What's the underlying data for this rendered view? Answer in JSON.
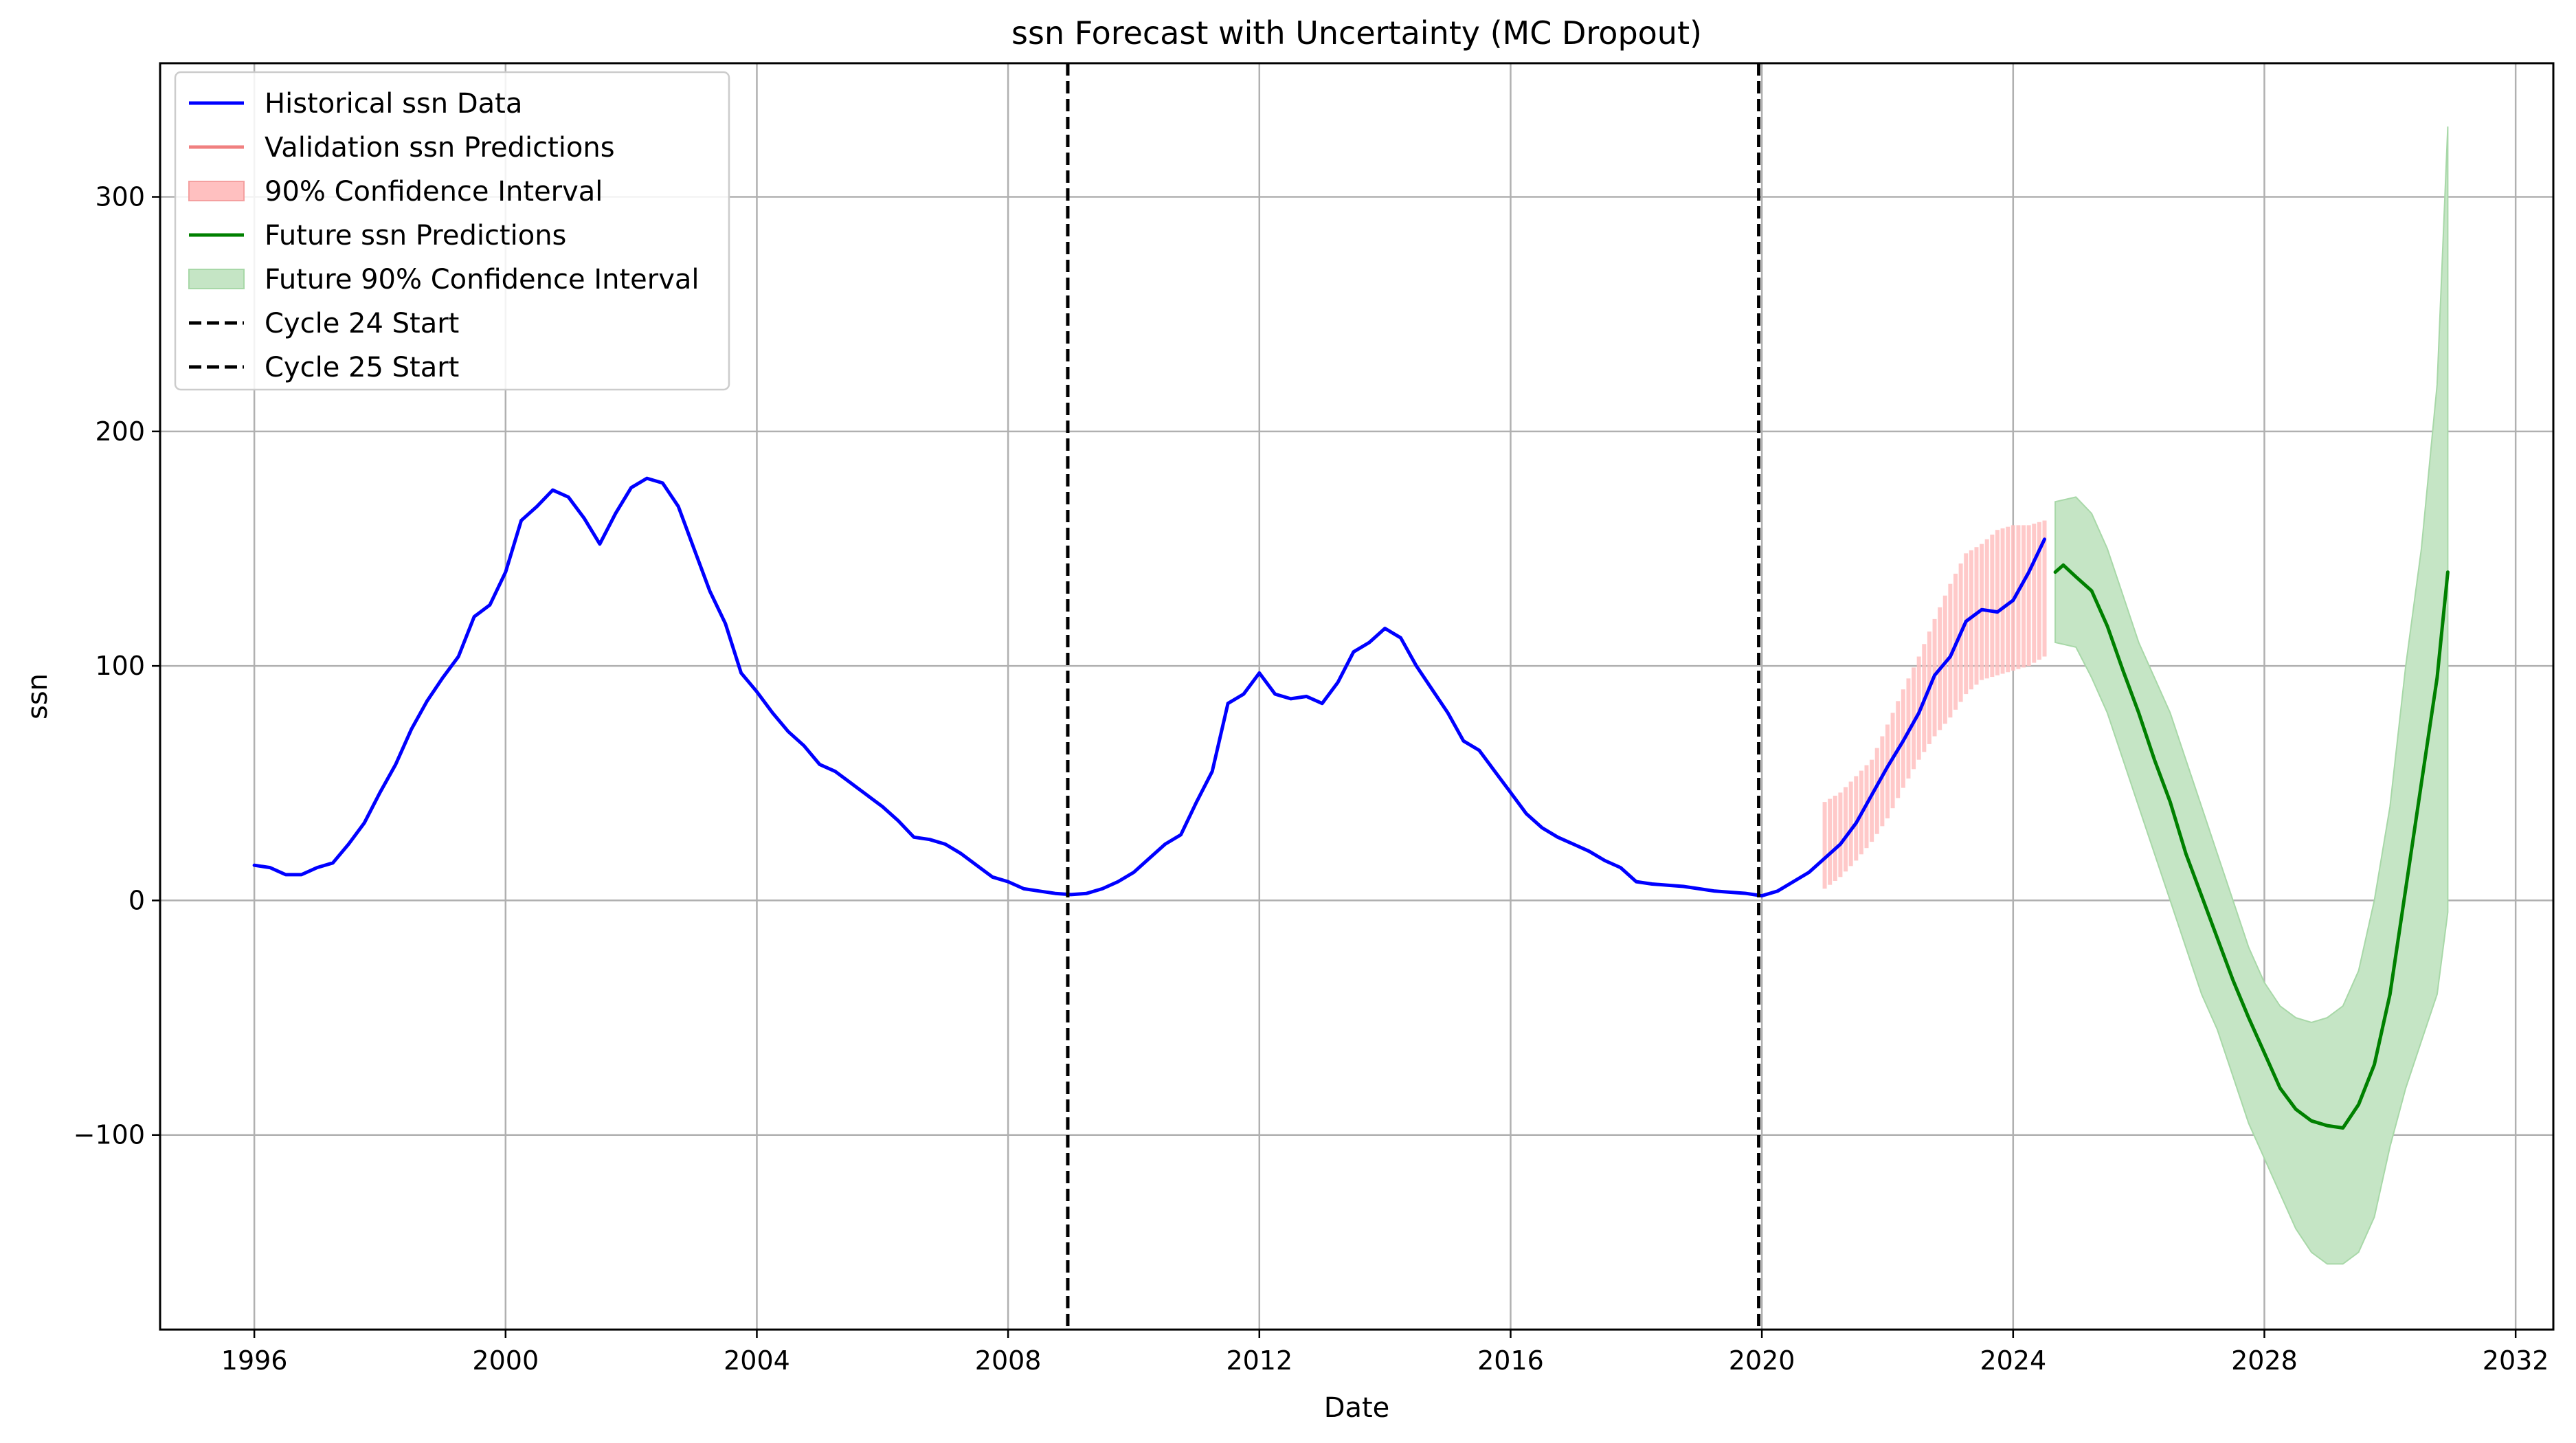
{
  "chart_data": {
    "type": "line",
    "title": "ssn Forecast with Uncertainty (MC Dropout)",
    "xlabel": "Date",
    "ylabel": "ssn",
    "xlim": [
      1994.5,
      2032.6
    ],
    "ylim": [
      -183,
      357
    ],
    "x_ticks": [
      1996,
      2000,
      2004,
      2008,
      2012,
      2016,
      2020,
      2024,
      2028,
      2032
    ],
    "y_ticks": [
      -100,
      0,
      100,
      200,
      300
    ],
    "y_tick_labels": [
      "−100",
      "0",
      "100",
      "200",
      "300"
    ],
    "grid": true,
    "legend_position": "top-left",
    "legend": [
      {
        "label": "Historical ssn Data",
        "kind": "line",
        "color": "#0000ff"
      },
      {
        "label": "Validation ssn Predictions",
        "kind": "line",
        "color": "#f08080"
      },
      {
        "label": "90% Confidence Interval",
        "kind": "patch",
        "color": "#ffc0c0"
      },
      {
        "label": "Future ssn Predictions",
        "kind": "line",
        "color": "#008000"
      },
      {
        "label": "Future 90% Confidence Interval",
        "kind": "patch",
        "color": "#c5e5c5"
      },
      {
        "label": "Cycle 24 Start",
        "kind": "dashed",
        "color": "#000000"
      },
      {
        "label": "Cycle 25 Start",
        "kind": "dashed",
        "color": "#000000"
      }
    ],
    "vlines": [
      {
        "name": "Cycle 24 Start",
        "x": 2008.95
      },
      {
        "name": "Cycle 25 Start",
        "x": 2019.95
      }
    ],
    "series": [
      {
        "name": "Historical ssn Data",
        "color": "#0000ff",
        "points": [
          [
            1996.0,
            15
          ],
          [
            1996.25,
            14
          ],
          [
            1996.5,
            11
          ],
          [
            1996.75,
            11
          ],
          [
            1997.0,
            14
          ],
          [
            1997.25,
            16
          ],
          [
            1997.5,
            24
          ],
          [
            1997.75,
            33
          ],
          [
            1998.0,
            46
          ],
          [
            1998.25,
            58
          ],
          [
            1998.5,
            73
          ],
          [
            1998.75,
            85
          ],
          [
            1999.0,
            95
          ],
          [
            1999.25,
            104
          ],
          [
            1999.5,
            121
          ],
          [
            1999.75,
            126
          ],
          [
            2000.0,
            140
          ],
          [
            2000.25,
            162
          ],
          [
            2000.5,
            168
          ],
          [
            2000.75,
            175
          ],
          [
            2001.0,
            172
          ],
          [
            2001.25,
            163
          ],
          [
            2001.5,
            152
          ],
          [
            2001.75,
            165
          ],
          [
            2002.0,
            176
          ],
          [
            2002.25,
            180
          ],
          [
            2002.5,
            178
          ],
          [
            2002.75,
            168
          ],
          [
            2003.0,
            150
          ],
          [
            2003.25,
            132
          ],
          [
            2003.5,
            118
          ],
          [
            2003.75,
            97
          ],
          [
            2004.0,
            89
          ],
          [
            2004.25,
            80
          ],
          [
            2004.5,
            72
          ],
          [
            2004.75,
            66
          ],
          [
            2005.0,
            58
          ],
          [
            2005.25,
            55
          ],
          [
            2005.5,
            50
          ],
          [
            2005.75,
            45
          ],
          [
            2006.0,
            40
          ],
          [
            2006.25,
            34
          ],
          [
            2006.5,
            27
          ],
          [
            2006.75,
            26
          ],
          [
            2007.0,
            24
          ],
          [
            2007.25,
            20
          ],
          [
            2007.5,
            15
          ],
          [
            2007.75,
            10
          ],
          [
            2008.0,
            8
          ],
          [
            2008.25,
            5
          ],
          [
            2008.5,
            4
          ],
          [
            2008.75,
            3
          ],
          [
            2009.0,
            2.5
          ],
          [
            2009.25,
            3
          ],
          [
            2009.5,
            5
          ],
          [
            2009.75,
            8
          ],
          [
            2010.0,
            12
          ],
          [
            2010.25,
            18
          ],
          [
            2010.5,
            24
          ],
          [
            2010.75,
            28
          ],
          [
            2011.0,
            42
          ],
          [
            2011.25,
            55
          ],
          [
            2011.5,
            84
          ],
          [
            2011.75,
            88
          ],
          [
            2012.0,
            97
          ],
          [
            2012.25,
            88
          ],
          [
            2012.5,
            86
          ],
          [
            2012.75,
            87
          ],
          [
            2013.0,
            84
          ],
          [
            2013.25,
            93
          ],
          [
            2013.5,
            106
          ],
          [
            2013.75,
            110
          ],
          [
            2014.0,
            116
          ],
          [
            2014.25,
            112
          ],
          [
            2014.5,
            100
          ],
          [
            2014.75,
            90
          ],
          [
            2015.0,
            80
          ],
          [
            2015.25,
            68
          ],
          [
            2015.5,
            64
          ],
          [
            2015.75,
            55
          ],
          [
            2016.0,
            46
          ],
          [
            2016.25,
            37
          ],
          [
            2016.5,
            31
          ],
          [
            2016.75,
            27
          ],
          [
            2017.0,
            24
          ],
          [
            2017.25,
            21
          ],
          [
            2017.5,
            17
          ],
          [
            2017.75,
            14
          ],
          [
            2018.0,
            8
          ],
          [
            2018.25,
            7
          ],
          [
            2018.5,
            6.5
          ],
          [
            2018.75,
            6
          ],
          [
            2019.0,
            5
          ],
          [
            2019.25,
            4
          ],
          [
            2019.5,
            3.5
          ],
          [
            2019.75,
            3
          ],
          [
            2020.0,
            2
          ],
          [
            2020.25,
            4
          ],
          [
            2020.5,
            8
          ],
          [
            2020.75,
            12
          ],
          [
            2021.0,
            18
          ],
          [
            2021.25,
            24
          ],
          [
            2021.5,
            33
          ],
          [
            2021.75,
            45
          ],
          [
            2022.0,
            57
          ],
          [
            2022.25,
            68
          ],
          [
            2022.5,
            80
          ],
          [
            2022.75,
            96
          ],
          [
            2023.0,
            104
          ],
          [
            2023.25,
            119
          ],
          [
            2023.5,
            124
          ],
          [
            2023.75,
            123
          ],
          [
            2024.0,
            128
          ],
          [
            2024.25,
            140
          ],
          [
            2024.5,
            154
          ]
        ]
      },
      {
        "name": "Future ssn Predictions",
        "color": "#008000",
        "points": [
          [
            2024.67,
            140
          ],
          [
            2024.8,
            143
          ],
          [
            2025.0,
            138
          ],
          [
            2025.25,
            132
          ],
          [
            2025.5,
            117
          ],
          [
            2025.75,
            98
          ],
          [
            2026.0,
            80
          ],
          [
            2026.25,
            60
          ],
          [
            2026.5,
            42
          ],
          [
            2026.75,
            20
          ],
          [
            2027.0,
            2
          ],
          [
            2027.25,
            -16
          ],
          [
            2027.5,
            -34
          ],
          [
            2027.75,
            -50
          ],
          [
            2028.0,
            -65
          ],
          [
            2028.25,
            -80
          ],
          [
            2028.5,
            -89
          ],
          [
            2028.75,
            -94
          ],
          [
            2029.0,
            -96
          ],
          [
            2029.25,
            -97
          ],
          [
            2029.5,
            -87
          ],
          [
            2029.75,
            -70
          ],
          [
            2030.0,
            -40
          ],
          [
            2030.25,
            5
          ],
          [
            2030.5,
            50
          ],
          [
            2030.75,
            95
          ],
          [
            2030.92,
            140
          ]
        ]
      }
    ],
    "validation_interval": {
      "name": "90% Confidence Interval",
      "color": "#ffc0c0",
      "x": [
        2021.0,
        2021.25,
        2021.5,
        2021.75,
        2022.0,
        2022.25,
        2022.5,
        2022.75,
        2023.0,
        2023.25,
        2023.5,
        2023.75,
        2024.0,
        2024.25,
        2024.5
      ],
      "lower": [
        5,
        10,
        17,
        25,
        35,
        48,
        60,
        70,
        78,
        88,
        94,
        96,
        98,
        100,
        104
      ],
      "upper": [
        42,
        46,
        53,
        60,
        75,
        90,
        104,
        120,
        135,
        148,
        152,
        158,
        160,
        160,
        162
      ]
    },
    "future_interval": {
      "name": "Future 90% Confidence Interval",
      "color": "#c5e5c5",
      "x": [
        2024.67,
        2025.0,
        2025.25,
        2025.5,
        2025.75,
        2026.0,
        2026.25,
        2026.5,
        2026.75,
        2027.0,
        2027.25,
        2027.5,
        2027.75,
        2028.0,
        2028.25,
        2028.5,
        2028.75,
        2029.0,
        2029.25,
        2029.5,
        2029.75,
        2030.0,
        2030.25,
        2030.5,
        2030.75,
        2030.92
      ],
      "lower": [
        110,
        108,
        95,
        80,
        60,
        40,
        20,
        0,
        -20,
        -40,
        -55,
        -75,
        -95,
        -110,
        -125,
        -140,
        -150,
        -155,
        -155,
        -150,
        -135,
        -105,
        -80,
        -60,
        -40,
        -5
      ],
      "upper": [
        170,
        172,
        165,
        150,
        130,
        110,
        95,
        80,
        60,
        40,
        20,
        0,
        -20,
        -35,
        -45,
        -50,
        -52,
        -50,
        -45,
        -30,
        0,
        40,
        100,
        150,
        220,
        330
      ]
    }
  }
}
